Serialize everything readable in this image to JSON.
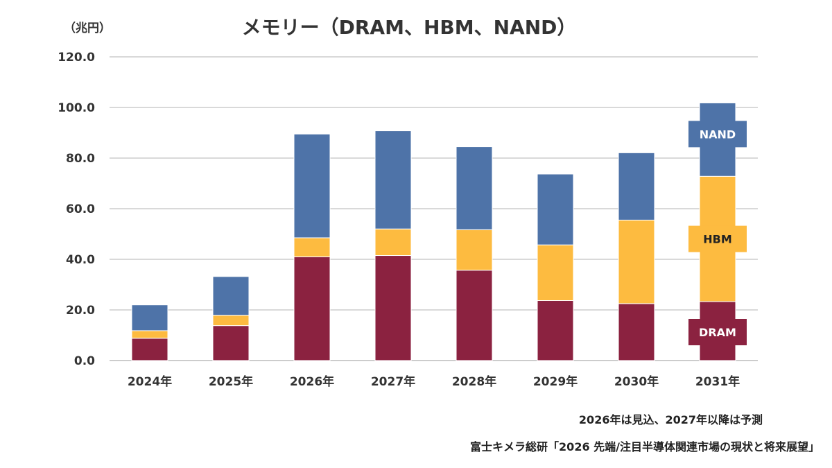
{
  "header": {
    "title": "メモリー（DRAM、HBM、NAND）",
    "unit": "（兆円）"
  },
  "footer": {
    "note": "2026年は見込、2027年以降は予測",
    "source": "富士キメラ総研「2026 先端/注目半導体関連市場の現状と将来展望」"
  },
  "chart_data": {
    "type": "bar",
    "stacked": true,
    "categories": [
      "2024年",
      "2025年",
      "2026年",
      "2027年",
      "2028年",
      "2029年",
      "2030年",
      "2031年"
    ],
    "series": [
      {
        "name": "DRAM",
        "color": "#8B2240",
        "values": [
          8.8,
          13.8,
          41.0,
          41.5,
          35.7,
          23.7,
          22.5,
          23.3
        ]
      },
      {
        "name": "HBM",
        "color": "#FDBB40",
        "values": [
          3.0,
          4.1,
          7.5,
          10.5,
          16.0,
          22.0,
          33.0,
          49.5
        ]
      },
      {
        "name": "NAND",
        "color": "#4E73A8",
        "values": [
          10.2,
          15.3,
          41.0,
          38.8,
          32.8,
          28.0,
          26.6,
          29.0
        ]
      }
    ],
    "yticks": [
      "0.0",
      "20.0",
      "40.0",
      "60.0",
      "80.0",
      "100.0",
      "120.0"
    ],
    "ylim": [
      0,
      120
    ],
    "grid": true,
    "legend": "inline-labels-on-last-bar"
  }
}
